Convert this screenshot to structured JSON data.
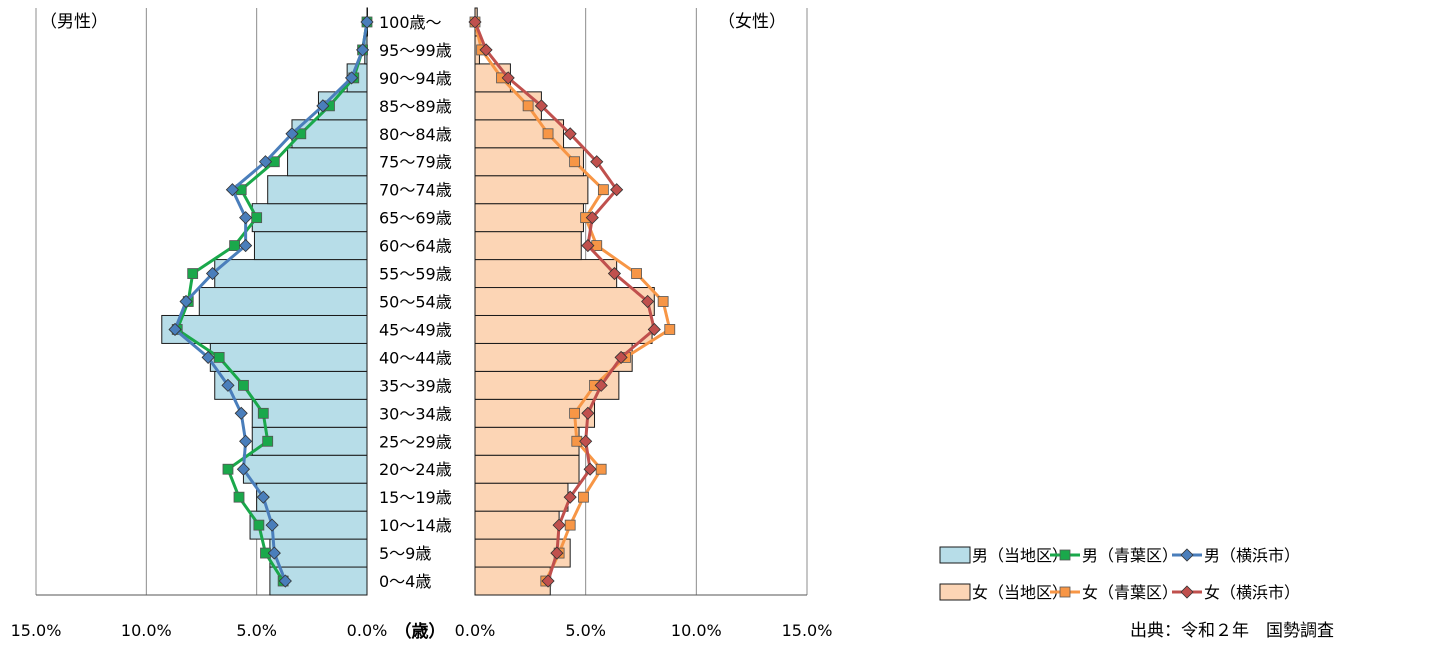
{
  "header": {
    "male_label": "（男性）",
    "female_label": "（女性）"
  },
  "center_axis_label": "（歳）",
  "source": "出典：令和２年　国勢調査",
  "colors": {
    "male_bar": "#b7dde8",
    "female_bar": "#fcd5b5",
    "male_ward": "#1aa84b",
    "male_city": "#4a7ebb",
    "female_ward": "#f79646",
    "female_city": "#c0504d"
  },
  "legend": [
    {
      "label": "男（当地区）",
      "kind": "bar",
      "color": "#b7dde8"
    },
    {
      "label": "男（青葉区）",
      "kind": "line",
      "marker": "square",
      "color": "#1aa84b"
    },
    {
      "label": "男（横浜市）",
      "kind": "line",
      "marker": "diamond",
      "color": "#4a7ebb"
    },
    {
      "label": "女（当地区）",
      "kind": "bar",
      "color": "#fcd5b5"
    },
    {
      "label": "女（青葉区）",
      "kind": "line",
      "marker": "square",
      "color": "#f79646"
    },
    {
      "label": "女（横浜市）",
      "kind": "line",
      "marker": "diamond",
      "color": "#c0504d"
    }
  ],
  "chart_data": {
    "type": "bar",
    "subtype": "population-pyramid",
    "categories": [
      "0〜4歳",
      "5〜9歳",
      "10〜14歳",
      "15〜19歳",
      "20〜24歳",
      "25〜29歳",
      "30〜34歳",
      "35〜39歳",
      "40〜44歳",
      "45〜49歳",
      "50〜54歳",
      "55〜59歳",
      "60〜64歳",
      "65〜69歳",
      "70〜74歳",
      "75〜79歳",
      "80〜84歳",
      "85〜89歳",
      "90〜94歳",
      "95〜99歳",
      "100歳〜"
    ],
    "x_ticks_male": [
      "15.0%",
      "10.0%",
      "5.0%",
      "0.0%"
    ],
    "x_ticks_female": [
      "0.0%",
      "5.0%",
      "10.0%",
      "15.0%"
    ],
    "xlim": [
      0,
      15
    ],
    "grid": "vertical",
    "legend_position": "bottom-right",
    "series": [
      {
        "name": "男（当地区）",
        "kind": "bar",
        "side": "male",
        "values": [
          4.4,
          4.4,
          5.3,
          5.0,
          5.6,
          5.2,
          5.2,
          6.9,
          7.1,
          9.3,
          7.6,
          6.9,
          5.1,
          5.2,
          4.5,
          3.6,
          3.4,
          2.2,
          0.9,
          0.1,
          0.0
        ]
      },
      {
        "name": "男（青葉区）",
        "kind": "line",
        "side": "male",
        "marker": "square",
        "values": [
          3.8,
          4.6,
          4.9,
          5.8,
          6.3,
          4.5,
          4.7,
          5.6,
          6.7,
          8.6,
          8.1,
          7.9,
          6.0,
          5.0,
          5.7,
          4.2,
          3.0,
          1.7,
          0.6,
          0.2,
          0.0
        ]
      },
      {
        "name": "男（横浜市）",
        "kind": "line",
        "side": "male",
        "marker": "diamond",
        "values": [
          3.7,
          4.2,
          4.3,
          4.7,
          5.6,
          5.5,
          5.7,
          6.3,
          7.2,
          8.7,
          8.2,
          7.0,
          5.5,
          5.5,
          6.1,
          4.6,
          3.4,
          2.0,
          0.7,
          0.2,
          0.0
        ]
      },
      {
        "name": "女（当地区）",
        "kind": "bar",
        "side": "female",
        "values": [
          3.4,
          4.3,
          3.8,
          4.2,
          4.7,
          4.7,
          5.4,
          6.5,
          7.1,
          8.0,
          8.1,
          6.4,
          4.8,
          4.9,
          5.1,
          4.9,
          4.0,
          3.0,
          1.6,
          0.2,
          0.1
        ]
      },
      {
        "name": "女（青葉区）",
        "kind": "line",
        "side": "female",
        "marker": "square",
        "values": [
          3.2,
          3.8,
          4.3,
          4.9,
          5.7,
          4.6,
          4.5,
          5.4,
          6.8,
          8.8,
          8.5,
          7.3,
          5.5,
          5.0,
          5.8,
          4.5,
          3.3,
          2.4,
          1.2,
          0.3,
          0.0
        ]
      },
      {
        "name": "女（横浜市）",
        "kind": "line",
        "side": "female",
        "marker": "diamond",
        "values": [
          3.3,
          3.7,
          3.8,
          4.3,
          5.2,
          5.0,
          5.1,
          5.7,
          6.6,
          8.1,
          7.8,
          6.3,
          5.1,
          5.3,
          6.4,
          5.5,
          4.3,
          3.0,
          1.5,
          0.5,
          0.0
        ]
      }
    ]
  }
}
